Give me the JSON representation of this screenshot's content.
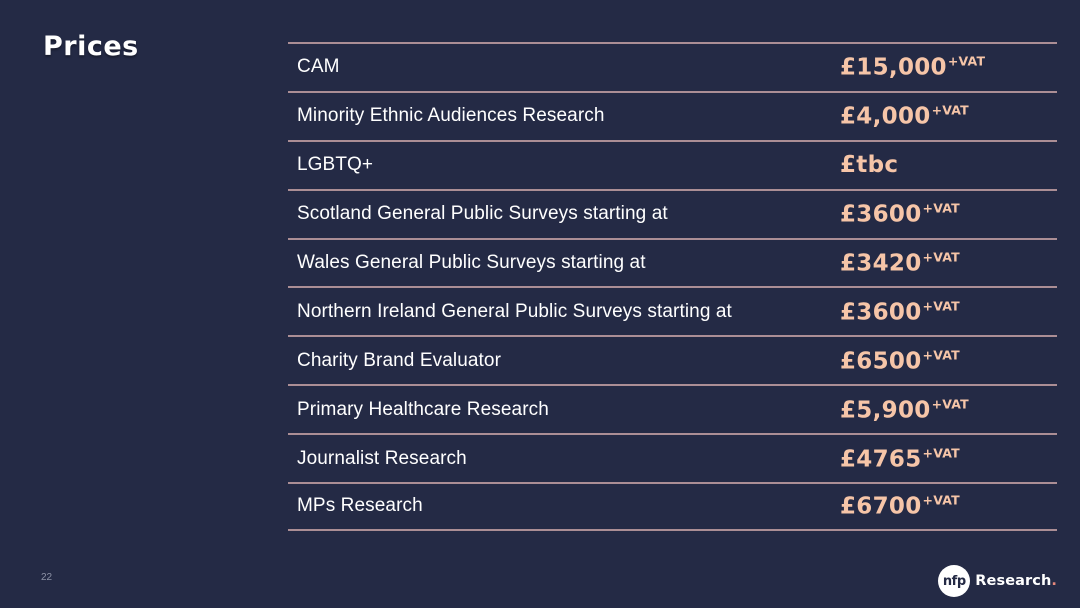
{
  "slide": {
    "title": "Prices",
    "page_number": "22"
  },
  "table": {
    "rows": [
      {
        "label": "CAM",
        "price": "£15,000",
        "suffix": "+VAT"
      },
      {
        "label": "Minority Ethnic Audiences Research",
        "price": "£4,000",
        "suffix": "+VAT"
      },
      {
        "label": "LGBTQ+",
        "price": "£tbc",
        "suffix": ""
      },
      {
        "label": "Scotland General Public Surveys starting at",
        "price": "£3600",
        "suffix": "+VAT"
      },
      {
        "label": "Wales General Public Surveys starting at",
        "price": "£3420",
        "suffix": "+VAT"
      },
      {
        "label": "Northern Ireland General Public Surveys starting at",
        "price": "£3600",
        "suffix": "+VAT"
      },
      {
        "label": "Charity Brand Evaluator",
        "price": "£6500",
        "suffix": "+VAT"
      },
      {
        "label": "Primary Healthcare Research",
        "price": "£5,900",
        "suffix": "+VAT"
      },
      {
        "label": "Journalist Research",
        "price": "£4765",
        "suffix": "+VAT"
      },
      {
        "label": "MPs Research",
        "price": "£6700",
        "suffix": "+VAT"
      }
    ]
  },
  "logo": {
    "mark": "nfp",
    "text": "Research",
    "period": "."
  },
  "colors": {
    "background": "#242a45",
    "accent": "#f6c5a8",
    "divider": "#ab8e95",
    "text": "#ffffff",
    "logo_period": "#e8897c"
  }
}
